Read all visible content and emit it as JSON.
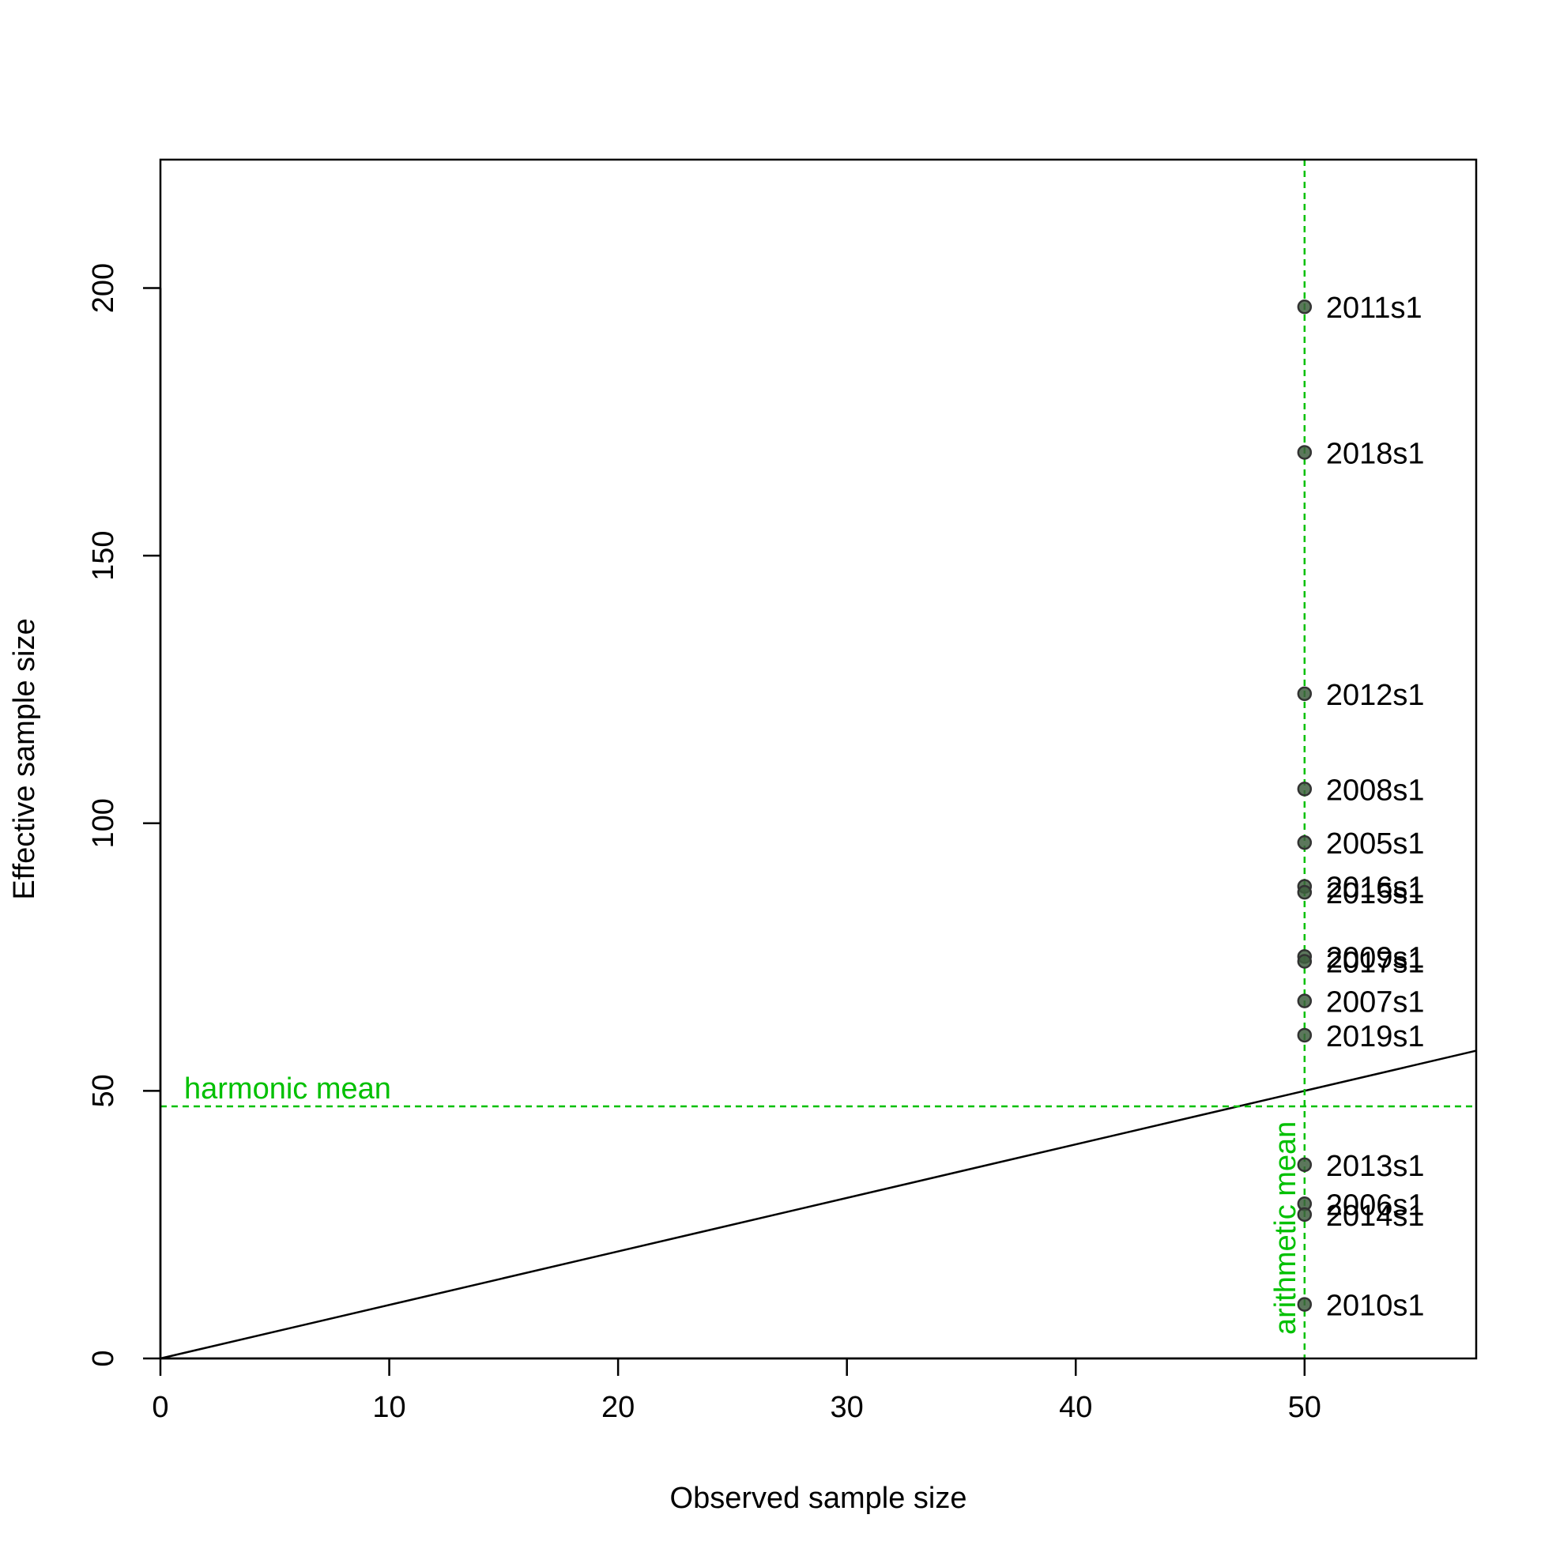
{
  "chart_data": {
    "type": "scatter",
    "title": "",
    "xlabel": "Observed sample size",
    "ylabel": "Effective sample size",
    "xlim": [
      0,
      57.5
    ],
    "ylim": [
      0,
      224
    ],
    "x_ticks": [
      0,
      10,
      20,
      30,
      40,
      50
    ],
    "y_ticks": [
      0,
      50,
      100,
      150,
      200
    ],
    "grid": false,
    "legend": "none",
    "colors": {
      "point_fill": "#3f5f3f",
      "point_stroke": "#333333",
      "reference_line": "#000000",
      "mean_lines": "#00c000"
    },
    "points": [
      {
        "label": "2011s1",
        "x": 50,
        "y": 196.5
      },
      {
        "label": "2018s1",
        "x": 50,
        "y": 169.3
      },
      {
        "label": "2012s1",
        "x": 50,
        "y": 124.2
      },
      {
        "label": "2008s1",
        "x": 50,
        "y": 106.4
      },
      {
        "label": "2005s1",
        "x": 50,
        "y": 96.4
      },
      {
        "label": "2016s1",
        "x": 50,
        "y": 88.2
      },
      {
        "label": "2015s1",
        "x": 50,
        "y": 87.1
      },
      {
        "label": "2009s1",
        "x": 50,
        "y": 75.1
      },
      {
        "label": "2017s1",
        "x": 50,
        "y": 74.2
      },
      {
        "label": "2007s1",
        "x": 50,
        "y": 66.8
      },
      {
        "label": "2019s1",
        "x": 50,
        "y": 60.4
      },
      {
        "label": "2013s1",
        "x": 50,
        "y": 36.2
      },
      {
        "label": "2006s1",
        "x": 50,
        "y": 28.9
      },
      {
        "label": "2014s1",
        "x": 50,
        "y": 26.9
      },
      {
        "label": "2010s1",
        "x": 50,
        "y": 10.1
      }
    ],
    "reference_line": {
      "slope": 1,
      "intercept": 0
    },
    "harmonic_mean": {
      "label": "harmonic mean",
      "value": 47.1
    },
    "arithmetic_mean": {
      "label": "arithmetic mean",
      "value": 50
    }
  }
}
